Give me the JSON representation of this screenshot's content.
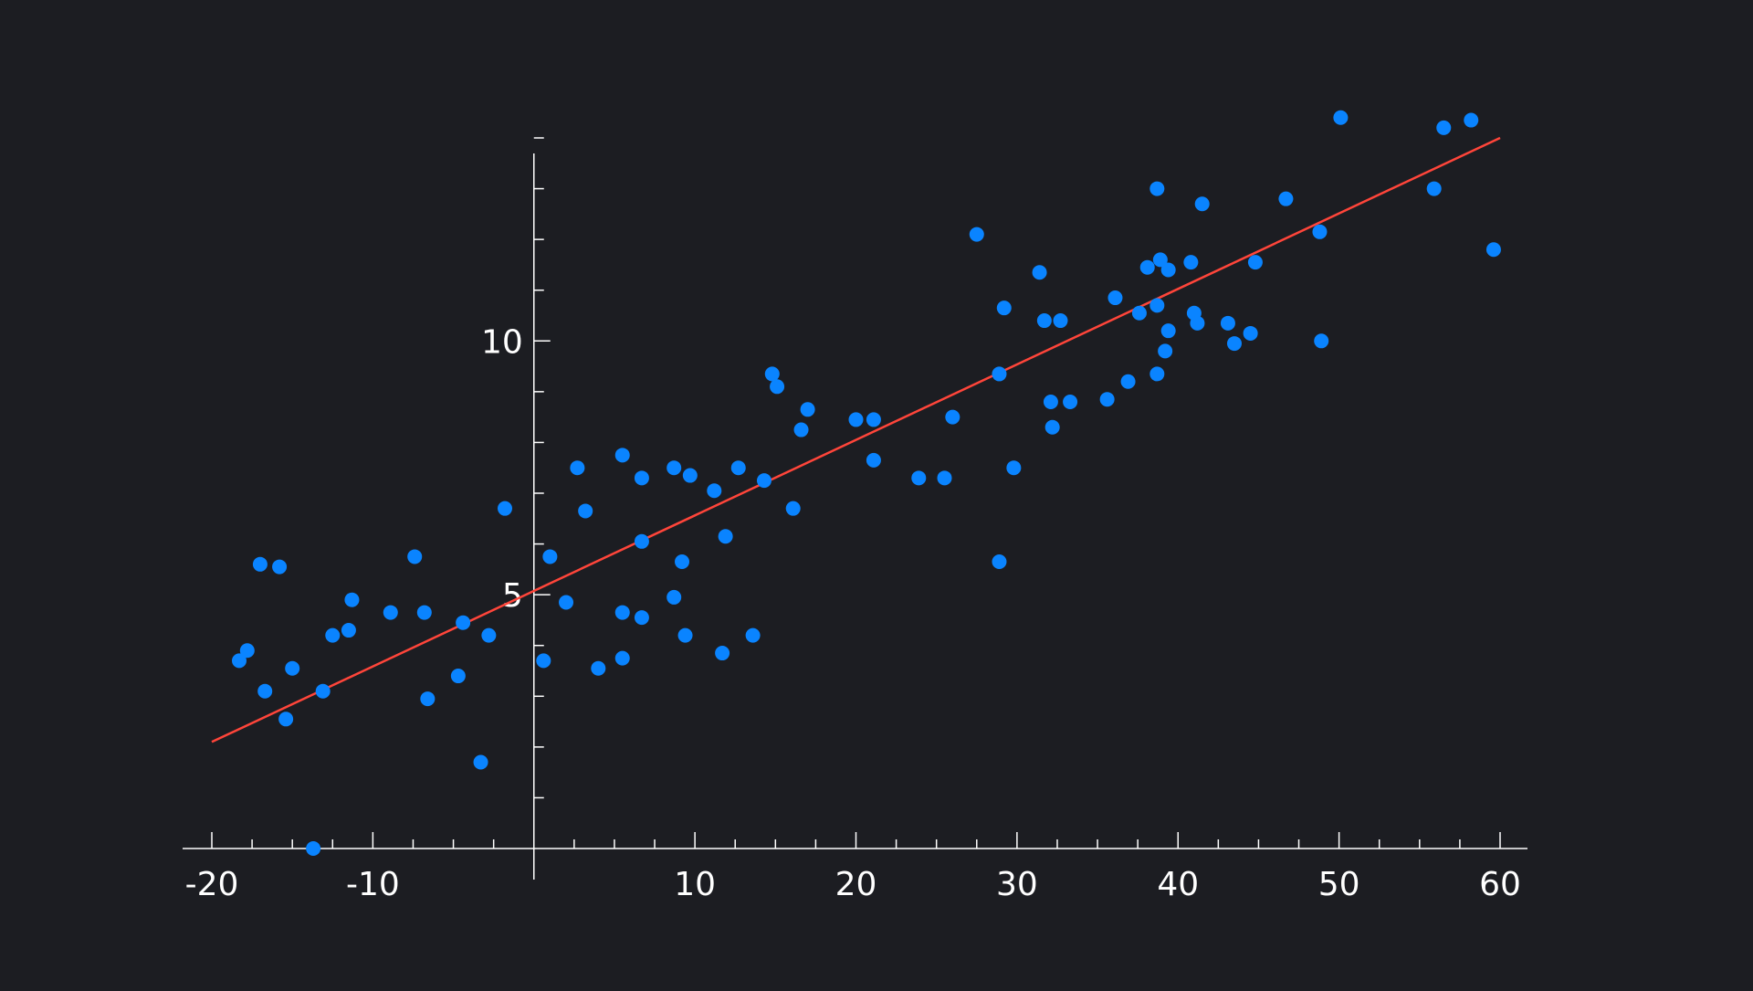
{
  "chart_data": {
    "type": "scatter",
    "title": "",
    "xlabel": "",
    "ylabel": "",
    "xlim": [
      -20,
      60
    ],
    "ylim": [
      0,
      14
    ],
    "x_ticks": [
      -20,
      -10,
      10,
      20,
      30,
      40,
      50,
      60
    ],
    "x_tick_labels": [
      "-20",
      "-10",
      "10",
      "20",
      "30",
      "40",
      "50",
      "60"
    ],
    "x_minor_step": 2.5,
    "y_ticks": [
      5,
      10
    ],
    "y_tick_labels": [
      "5",
      "10"
    ],
    "y_minor_step": 1,
    "grid": false,
    "colors": {
      "background": "#1c1d22",
      "axis": "#ffffff",
      "points": "#0a84ff",
      "trendline": "#ff453a"
    },
    "series": [
      {
        "points": [
          [
            -18.3,
            3.7
          ],
          [
            -17.8,
            3.9
          ],
          [
            -17.0,
            5.6
          ],
          [
            -16.7,
            3.1
          ],
          [
            -15.8,
            5.55
          ],
          [
            -15.4,
            2.55
          ],
          [
            -15.0,
            3.55
          ],
          [
            -13.7,
            0.0
          ],
          [
            -13.1,
            3.1
          ],
          [
            -12.5,
            4.2
          ],
          [
            -11.5,
            4.3
          ],
          [
            -11.3,
            4.9
          ],
          [
            -8.9,
            4.65
          ],
          [
            -7.4,
            5.75
          ],
          [
            -6.8,
            4.65
          ],
          [
            -6.6,
            2.95
          ],
          [
            -4.7,
            3.4
          ],
          [
            -4.4,
            4.45
          ],
          [
            -3.3,
            1.7
          ],
          [
            -2.8,
            4.2
          ],
          [
            -1.8,
            6.7
          ],
          [
            0.6,
            3.7
          ],
          [
            1.0,
            5.75
          ],
          [
            2.0,
            4.85
          ],
          [
            2.7,
            7.5
          ],
          [
            3.2,
            6.65
          ],
          [
            4.0,
            3.55
          ],
          [
            5.5,
            7.75
          ],
          [
            5.5,
            4.65
          ],
          [
            5.5,
            3.75
          ],
          [
            6.7,
            7.3
          ],
          [
            6.7,
            6.05
          ],
          [
            6.7,
            4.55
          ],
          [
            8.7,
            7.5
          ],
          [
            8.7,
            4.95
          ],
          [
            9.2,
            5.65
          ],
          [
            9.4,
            4.2
          ],
          [
            9.7,
            7.35
          ],
          [
            11.2,
            7.05
          ],
          [
            11.7,
            3.85
          ],
          [
            11.9,
            6.15
          ],
          [
            12.7,
            7.5
          ],
          [
            13.6,
            4.2
          ],
          [
            14.3,
            7.25
          ],
          [
            14.8,
            9.35
          ],
          [
            15.1,
            9.1
          ],
          [
            16.1,
            6.7
          ],
          [
            16.6,
            8.25
          ],
          [
            17.0,
            8.65
          ],
          [
            20.0,
            8.45
          ],
          [
            21.1,
            8.45
          ],
          [
            21.1,
            7.65
          ],
          [
            23.9,
            7.3
          ],
          [
            25.5,
            7.3
          ],
          [
            26.0,
            8.5
          ],
          [
            27.5,
            12.1
          ],
          [
            28.9,
            9.35
          ],
          [
            28.9,
            5.65
          ],
          [
            29.2,
            10.65
          ],
          [
            29.8,
            7.5
          ],
          [
            31.4,
            11.35
          ],
          [
            31.7,
            10.4
          ],
          [
            32.1,
            8.8
          ],
          [
            32.2,
            8.3
          ],
          [
            32.7,
            10.4
          ],
          [
            33.3,
            8.8
          ],
          [
            35.6,
            8.85
          ],
          [
            36.1,
            10.85
          ],
          [
            36.9,
            9.2
          ],
          [
            37.6,
            10.55
          ],
          [
            38.1,
            11.45
          ],
          [
            38.7,
            13.0
          ],
          [
            38.7,
            10.7
          ],
          [
            38.7,
            9.35
          ],
          [
            38.9,
            11.6
          ],
          [
            39.2,
            9.8
          ],
          [
            39.4,
            11.4
          ],
          [
            39.4,
            10.2
          ],
          [
            40.8,
            11.55
          ],
          [
            41.0,
            10.55
          ],
          [
            41.2,
            10.35
          ],
          [
            41.5,
            12.7
          ],
          [
            43.1,
            10.35
          ],
          [
            43.5,
            9.95
          ],
          [
            44.5,
            10.15
          ],
          [
            44.8,
            11.55
          ],
          [
            46.7,
            12.8
          ],
          [
            48.8,
            12.15
          ],
          [
            48.9,
            10.0
          ],
          [
            50.1,
            14.4
          ],
          [
            55.9,
            13.0
          ],
          [
            56.5,
            14.2
          ],
          [
            58.2,
            14.35
          ],
          [
            59.6,
            11.8
          ]
        ]
      }
    ],
    "trendline": {
      "x": [
        -20,
        60
      ],
      "y": [
        2.1,
        14.0
      ]
    }
  }
}
